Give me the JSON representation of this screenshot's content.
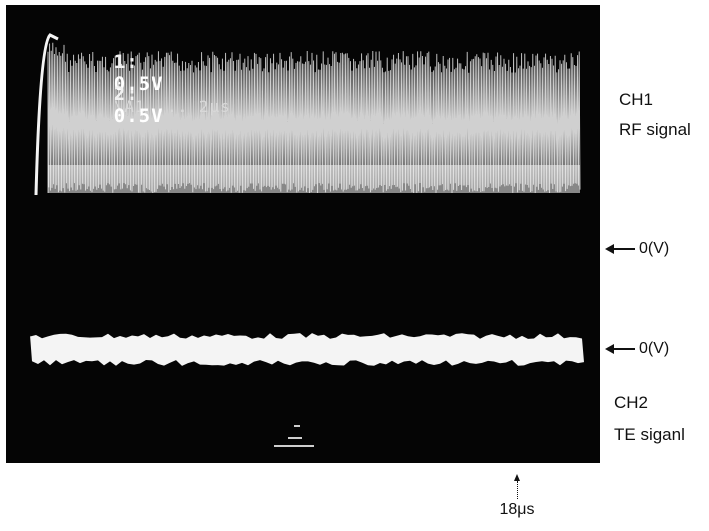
{
  "oscilloscope": {
    "ch1_readout": {
      "channel": "1:",
      "volts": "0.5V",
      "extra": "\\A1 ... 2μs"
    },
    "ch2_readout": {
      "channel": "2:",
      "volts": "0.5V"
    }
  },
  "labels": {
    "ch1_name": "CH1",
    "ch1_signal": "RF signal",
    "ch2_name": "CH2",
    "ch2_signal": "TE siganl",
    "zero_level_top": "0(V)",
    "zero_level_bottom": "0(V)",
    "time_marker": "18μs"
  },
  "colors": {
    "screen": "#050505",
    "trace": "#f4f4f4",
    "ink": "#111111"
  }
}
